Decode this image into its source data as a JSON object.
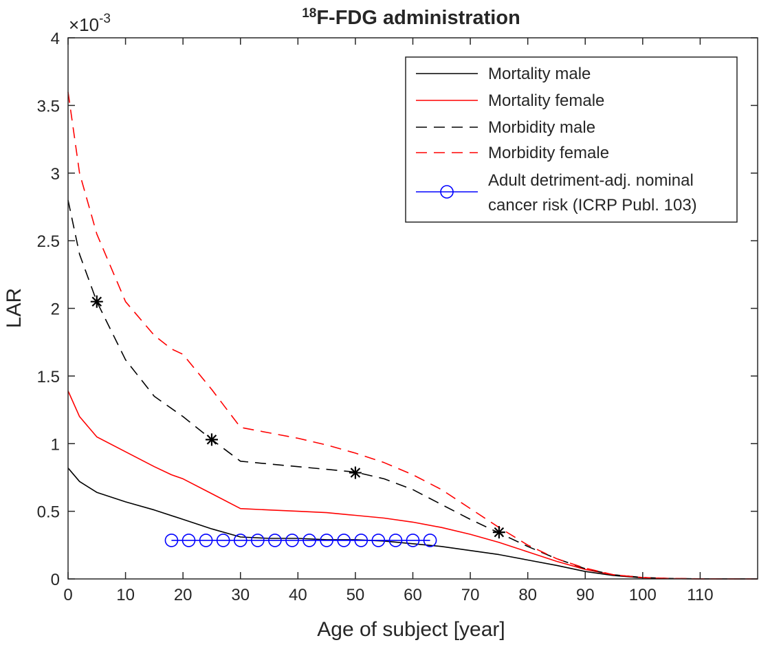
{
  "chart_data": {
    "type": "line",
    "title_superscript": "18",
    "title_main": "F-FDG administration",
    "xlabel": "Age of subject [year]",
    "ylabel": "LAR",
    "exponent_base": "×10",
    "exponent_power": "-3",
    "xlim": [
      0,
      120
    ],
    "ylim": [
      0,
      4
    ],
    "x_ticks": [
      0,
      10,
      20,
      30,
      40,
      50,
      60,
      70,
      80,
      90,
      100,
      110
    ],
    "x_tick_labels": [
      "0",
      "10",
      "20",
      "30",
      "40",
      "50",
      "60",
      "70",
      "80",
      "90",
      "100",
      "110"
    ],
    "y_ticks": [
      0,
      0.5,
      1,
      1.5,
      2,
      2.5,
      3,
      3.5,
      4
    ],
    "y_tick_labels": [
      "0",
      "0.5",
      "1",
      "1.5",
      "2",
      "2.5",
      "3",
      "3.5",
      "4"
    ],
    "legend_position": "top-right",
    "series": [
      {
        "name": "Mortality male",
        "color": "#000000",
        "style": "solid",
        "x": [
          0,
          2,
          5,
          10,
          15,
          20,
          25,
          30,
          35,
          40,
          45,
          50,
          55,
          60,
          65,
          70,
          75,
          80,
          85,
          90,
          95,
          100,
          105,
          110,
          120
        ],
        "y": [
          0.82,
          0.72,
          0.64,
          0.57,
          0.51,
          0.44,
          0.37,
          0.31,
          0.3,
          0.3,
          0.29,
          0.29,
          0.28,
          0.26,
          0.24,
          0.21,
          0.18,
          0.14,
          0.1,
          0.055,
          0.025,
          0.008,
          0.002,
          0.0005,
          0
        ]
      },
      {
        "name": "Mortality female",
        "color": "#ff0000",
        "style": "solid",
        "x": [
          0,
          2,
          5,
          10,
          15,
          18,
          20,
          25,
          30,
          35,
          40,
          45,
          50,
          55,
          60,
          65,
          70,
          75,
          80,
          85,
          90,
          95,
          100,
          105,
          110,
          120
        ],
        "y": [
          1.39,
          1.2,
          1.05,
          0.94,
          0.83,
          0.77,
          0.74,
          0.63,
          0.52,
          0.51,
          0.5,
          0.49,
          0.47,
          0.45,
          0.42,
          0.38,
          0.33,
          0.27,
          0.2,
          0.13,
          0.07,
          0.03,
          0.01,
          0.002,
          0.0005,
          0
        ]
      },
      {
        "name": "Morbidity male",
        "color": "#000000",
        "style": "dashed",
        "x": [
          0,
          2,
          5,
          10,
          15,
          20,
          25,
          30,
          35,
          40,
          45,
          50,
          55,
          60,
          65,
          70,
          75,
          80,
          85,
          90,
          95,
          100,
          105,
          110,
          120
        ],
        "y": [
          2.8,
          2.4,
          2.05,
          1.62,
          1.35,
          1.2,
          1.03,
          0.87,
          0.85,
          0.83,
          0.81,
          0.79,
          0.74,
          0.66,
          0.55,
          0.44,
          0.34,
          0.24,
          0.15,
          0.075,
          0.03,
          0.01,
          0.003,
          0.0008,
          0
        ]
      },
      {
        "name": "Morbidity female",
        "color": "#ff0000",
        "style": "dashed",
        "x": [
          0,
          2,
          5,
          10,
          15,
          18,
          20,
          25,
          30,
          35,
          40,
          45,
          50,
          55,
          60,
          65,
          70,
          75,
          80,
          85,
          90,
          95,
          100,
          105,
          110,
          120
        ],
        "y": [
          3.6,
          3.0,
          2.55,
          2.05,
          1.8,
          1.7,
          1.66,
          1.4,
          1.12,
          1.08,
          1.04,
          0.99,
          0.93,
          0.86,
          0.77,
          0.66,
          0.52,
          0.38,
          0.25,
          0.15,
          0.08,
          0.03,
          0.01,
          0.003,
          0.001,
          0
        ]
      },
      {
        "name": "Adult detriment-adj. nominal cancer risk (ICRP Publ. 103)",
        "legend_lines": [
          "Adult detriment-adj. nominal",
          "cancer risk (ICRP Publ. 103)"
        ],
        "color": "#0000ff",
        "style": "solid-circles",
        "x": [
          18,
          21,
          24,
          27,
          30,
          33,
          36,
          39,
          42,
          45,
          48,
          51,
          54,
          57,
          60,
          63
        ],
        "y": [
          0.285,
          0.285,
          0.285,
          0.285,
          0.285,
          0.285,
          0.285,
          0.285,
          0.285,
          0.285,
          0.285,
          0.285,
          0.285,
          0.285,
          0.285,
          0.285
        ]
      }
    ],
    "star_markers": {
      "color": "#000000",
      "x": [
        5,
        25,
        50,
        75
      ],
      "y": [
        2.05,
        1.03,
        0.785,
        0.345
      ]
    }
  }
}
